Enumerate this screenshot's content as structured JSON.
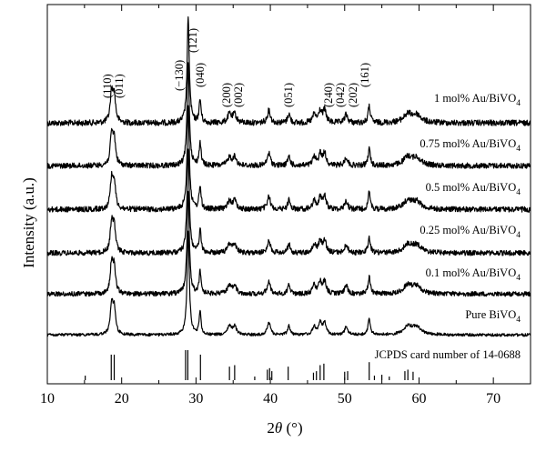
{
  "chart_data": {
    "type": "line",
    "xlabel_prefix": "2",
    "xlabel_theta": "θ",
    "xlabel_suffix": " (°)",
    "ylabel": "Intensity (a.u.)",
    "xlim": [
      10,
      75
    ],
    "x_ticks": [
      10,
      20,
      30,
      40,
      50,
      60,
      70
    ],
    "y_ticks_shown": false,
    "peak_labels": [
      {
        "label": "(110)",
        "x": 18.6
      },
      {
        "label": "(011)",
        "x": 19.2
      },
      {
        "label": "(−130)",
        "x": 28.9
      },
      {
        "label": "(121)",
        "x": 29.0
      },
      {
        "label": "(040)",
        "x": 30.6
      },
      {
        "label": "(200)",
        "x": 34.6
      },
      {
        "label": "(002)",
        "x": 35.3
      },
      {
        "label": "(051)",
        "x": 42.5
      },
      {
        "label": "(240)",
        "x": 46.6
      },
      {
        "label": "(042)",
        "x": 47.3
      },
      {
        "label": "(202)",
        "x": 50.1
      },
      {
        "label": "(161)",
        "x": 53.3
      }
    ],
    "series": [
      {
        "name": "1 mol% Au/BiVO",
        "sub": "4"
      },
      {
        "name": "0.75 mol% Au/BiVO",
        "sub": "4"
      },
      {
        "name": "0.5 mol% Au/BiVO",
        "sub": "4"
      },
      {
        "name": "0.25 mol% Au/BiVO",
        "sub": "4"
      },
      {
        "name": "0.1 mol% Au/BiVO",
        "sub": "4"
      },
      {
        "name": "Pure BiVO",
        "sub": "4"
      }
    ],
    "peaks": [
      {
        "x": 18.65,
        "h": 0.28,
        "w": 0.22
      },
      {
        "x": 19.0,
        "h": 0.24,
        "w": 0.22
      },
      {
        "x": 28.95,
        "h": 1.0,
        "w": 0.18
      },
      {
        "x": 30.55,
        "h": 0.22,
        "w": 0.16
      },
      {
        "x": 34.5,
        "h": 0.08,
        "w": 0.3
      },
      {
        "x": 35.2,
        "h": 0.08,
        "w": 0.3
      },
      {
        "x": 39.8,
        "h": 0.12,
        "w": 0.25
      },
      {
        "x": 42.5,
        "h": 0.09,
        "w": 0.2
      },
      {
        "x": 45.9,
        "h": 0.08,
        "w": 0.25
      },
      {
        "x": 46.7,
        "h": 0.11,
        "w": 0.25
      },
      {
        "x": 47.3,
        "h": 0.12,
        "w": 0.25
      },
      {
        "x": 50.2,
        "h": 0.08,
        "w": 0.25
      },
      {
        "x": 53.3,
        "h": 0.16,
        "w": 0.18
      },
      {
        "x": 58.5,
        "h": 0.08,
        "w": 0.7
      },
      {
        "x": 59.7,
        "h": 0.07,
        "w": 0.7
      }
    ],
    "reference": {
      "label": "JCPDS card number of 14-0688",
      "lines": [
        {
          "x": 15.1,
          "h": 0.15
        },
        {
          "x": 18.6,
          "h": 0.85
        },
        {
          "x": 19.0,
          "h": 0.85
        },
        {
          "x": 28.6,
          "h": 1.0
        },
        {
          "x": 28.9,
          "h": 1.0
        },
        {
          "x": 30.6,
          "h": 0.85
        },
        {
          "x": 34.5,
          "h": 0.45
        },
        {
          "x": 35.2,
          "h": 0.5
        },
        {
          "x": 37.9,
          "h": 0.12
        },
        {
          "x": 39.6,
          "h": 0.35
        },
        {
          "x": 39.9,
          "h": 0.4
        },
        {
          "x": 40.2,
          "h": 0.3
        },
        {
          "x": 42.4,
          "h": 0.45
        },
        {
          "x": 45.8,
          "h": 0.25
        },
        {
          "x": 46.2,
          "h": 0.3
        },
        {
          "x": 46.7,
          "h": 0.5
        },
        {
          "x": 47.2,
          "h": 0.55
        },
        {
          "x": 50.0,
          "h": 0.28
        },
        {
          "x": 50.4,
          "h": 0.3
        },
        {
          "x": 53.3,
          "h": 0.6
        },
        {
          "x": 54.0,
          "h": 0.15
        },
        {
          "x": 55.0,
          "h": 0.18
        },
        {
          "x": 56.0,
          "h": 0.12
        },
        {
          "x": 58.1,
          "h": 0.3
        },
        {
          "x": 58.5,
          "h": 0.35
        },
        {
          "x": 59.2,
          "h": 0.28
        }
      ]
    },
    "grid": false,
    "colors": {
      "line": "#000000",
      "background": "#ffffff"
    }
  }
}
